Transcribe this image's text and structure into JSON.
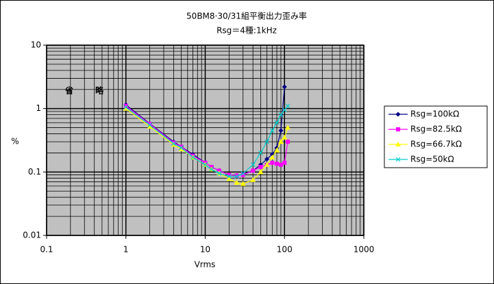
{
  "chart_data": {
    "type": "line",
    "title": "50BM8·30/31組平衡出力歪み率",
    "subtitle": "Rsg＝4種:1kHz",
    "annotation": "省 略",
    "x_label": "Vrms",
    "y_label": "%",
    "x_log": true,
    "y_log": true,
    "grid": true,
    "minor_grid": true,
    "legend": "right",
    "xlim": [
      0.1,
      1000
    ],
    "xticks": [
      0.1,
      1,
      10,
      100,
      1000
    ],
    "ylim": [
      0.01,
      10
    ],
    "yticks": [
      0.01,
      0.1,
      1,
      10
    ],
    "x": [
      1,
      2,
      4,
      5,
      7,
      10,
      12,
      15,
      20,
      25,
      30,
      40,
      50,
      60,
      70,
      80,
      90,
      100,
      110
    ],
    "series": [
      {
        "name": "Rsg=100kΩ",
        "color": "#000080",
        "marker": "diamond",
        "values": [
          1.15,
          0.58,
          0.3,
          0.25,
          0.19,
          0.14,
          0.12,
          0.105,
          0.09,
          0.088,
          0.092,
          0.105,
          0.13,
          0.16,
          0.19,
          0.24,
          0.45,
          2.2,
          null
        ]
      },
      {
        "name": "Rsg=82.5kΩ",
        "color": "#ff00ff",
        "marker": "square",
        "values": [
          1.1,
          0.57,
          0.29,
          0.25,
          0.18,
          0.14,
          0.12,
          0.105,
          0.09,
          0.088,
          0.09,
          0.105,
          0.12,
          0.13,
          0.14,
          0.135,
          0.13,
          0.14,
          0.3
        ]
      },
      {
        "name": "Rsg=66.7kΩ",
        "color": "#ffff00",
        "marker": "triangle",
        "values": [
          1.0,
          0.52,
          0.27,
          0.23,
          0.17,
          0.13,
          0.11,
          0.095,
          0.078,
          0.068,
          0.065,
          0.075,
          0.1,
          0.13,
          0.17,
          0.22,
          0.3,
          0.35,
          0.5
        ]
      },
      {
        "name": "Rsg=50kΩ",
        "color": "#00cccc",
        "marker": "x",
        "values": [
          1.05,
          0.55,
          0.28,
          0.24,
          0.17,
          0.13,
          0.11,
          0.095,
          0.085,
          0.085,
          0.095,
          0.13,
          0.2,
          0.3,
          0.45,
          0.6,
          0.8,
          0.95,
          1.1
        ]
      }
    ]
  }
}
